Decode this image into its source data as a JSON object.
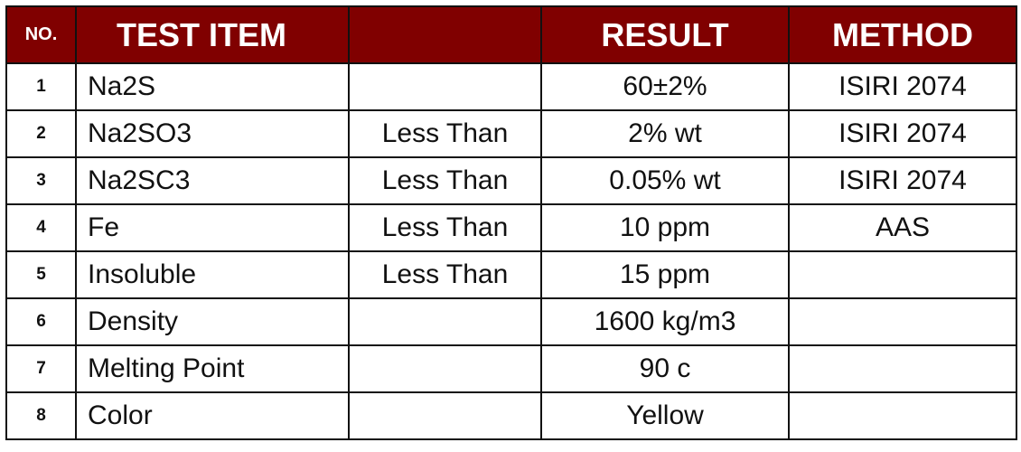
{
  "header": {
    "no": "NO.",
    "test_item": "TEST ITEM",
    "result": "RESULT",
    "method": "METHOD"
  },
  "rows": [
    {
      "no": 1,
      "item": "Na2S",
      "result": "60±2%",
      "method": "ISIRI 2074"
    },
    {
      "no": 2,
      "item": "Na2SO3",
      "qualifier": "Less Than",
      "result": "2% wt",
      "method": "ISIRI 2074"
    },
    {
      "no": 3,
      "item": "Na2SC3",
      "qualifier": "Less Than",
      "result": "0.05% wt",
      "method": "ISIRI 2074"
    },
    {
      "no": 4,
      "item": "Fe",
      "qualifier": "Less Than",
      "result": "10 ppm",
      "method": "AAS"
    },
    {
      "no": 5,
      "item": "Insoluble",
      "qualifier": "Less Than",
      "result": "15 ppm"
    },
    {
      "no": 6,
      "item": "Density",
      "result": "1600 kg/m3"
    },
    {
      "no": 7,
      "item": "Melting Point",
      "result": "90 c"
    },
    {
      "no": 8,
      "item": "Color",
      "result": "Yellow"
    }
  ]
}
